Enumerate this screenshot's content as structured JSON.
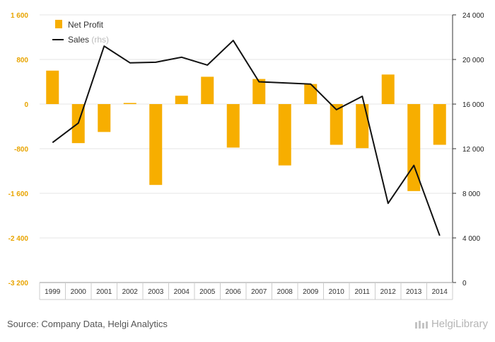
{
  "chart_data": {
    "type": "bar",
    "categories": [
      "1999",
      "2000",
      "2001",
      "2002",
      "2003",
      "2004",
      "2005",
      "2006",
      "2007",
      "2008",
      "2009",
      "2010",
      "2011",
      "2012",
      "2013",
      "2014"
    ],
    "series": [
      {
        "name": "Net Profit",
        "type": "bar",
        "axis": "left",
        "values": [
          600,
          -700,
          -500,
          20,
          -1450,
          150,
          490,
          -780,
          450,
          -1100,
          360,
          -730,
          -790,
          530,
          -1560,
          -730
        ]
      },
      {
        "name": "Sales",
        "name_suffix": "(rhs)",
        "type": "line",
        "axis": "right",
        "values": [
          12550,
          14300,
          21200,
          19700,
          19750,
          20200,
          19500,
          21700,
          18000,
          17900,
          17800,
          15500,
          16700,
          7100,
          10500,
          4200
        ]
      }
    ],
    "y_left": {
      "min": -3200,
      "max": 1600,
      "ticks": [
        1600,
        800,
        0,
        -800,
        -1600,
        -2400,
        -3200
      ],
      "tick_labels": [
        "1 600",
        "800",
        "0",
        "-800",
        "-1 600",
        "-2 400",
        "-3 200"
      ]
    },
    "y_right": {
      "min": 0,
      "max": 24000,
      "ticks": [
        24000,
        20000,
        16000,
        12000,
        8000,
        4000,
        0
      ],
      "tick_labels": [
        "24 000",
        "20 000",
        "16 000",
        "12 000",
        "8 000",
        "4 000",
        "0"
      ]
    },
    "grid": true,
    "legend_position": "top-left"
  },
  "colors": {
    "bar": "#f7ae00",
    "line": "#111111",
    "left_axis_labels": "#e8a400",
    "grid": "#e6e6e6"
  },
  "footer": {
    "source": "Source: Company Data, Helgi Analytics",
    "logo": "HelgiLibrary",
    "logo_icon": "helgi-logo-icon"
  }
}
